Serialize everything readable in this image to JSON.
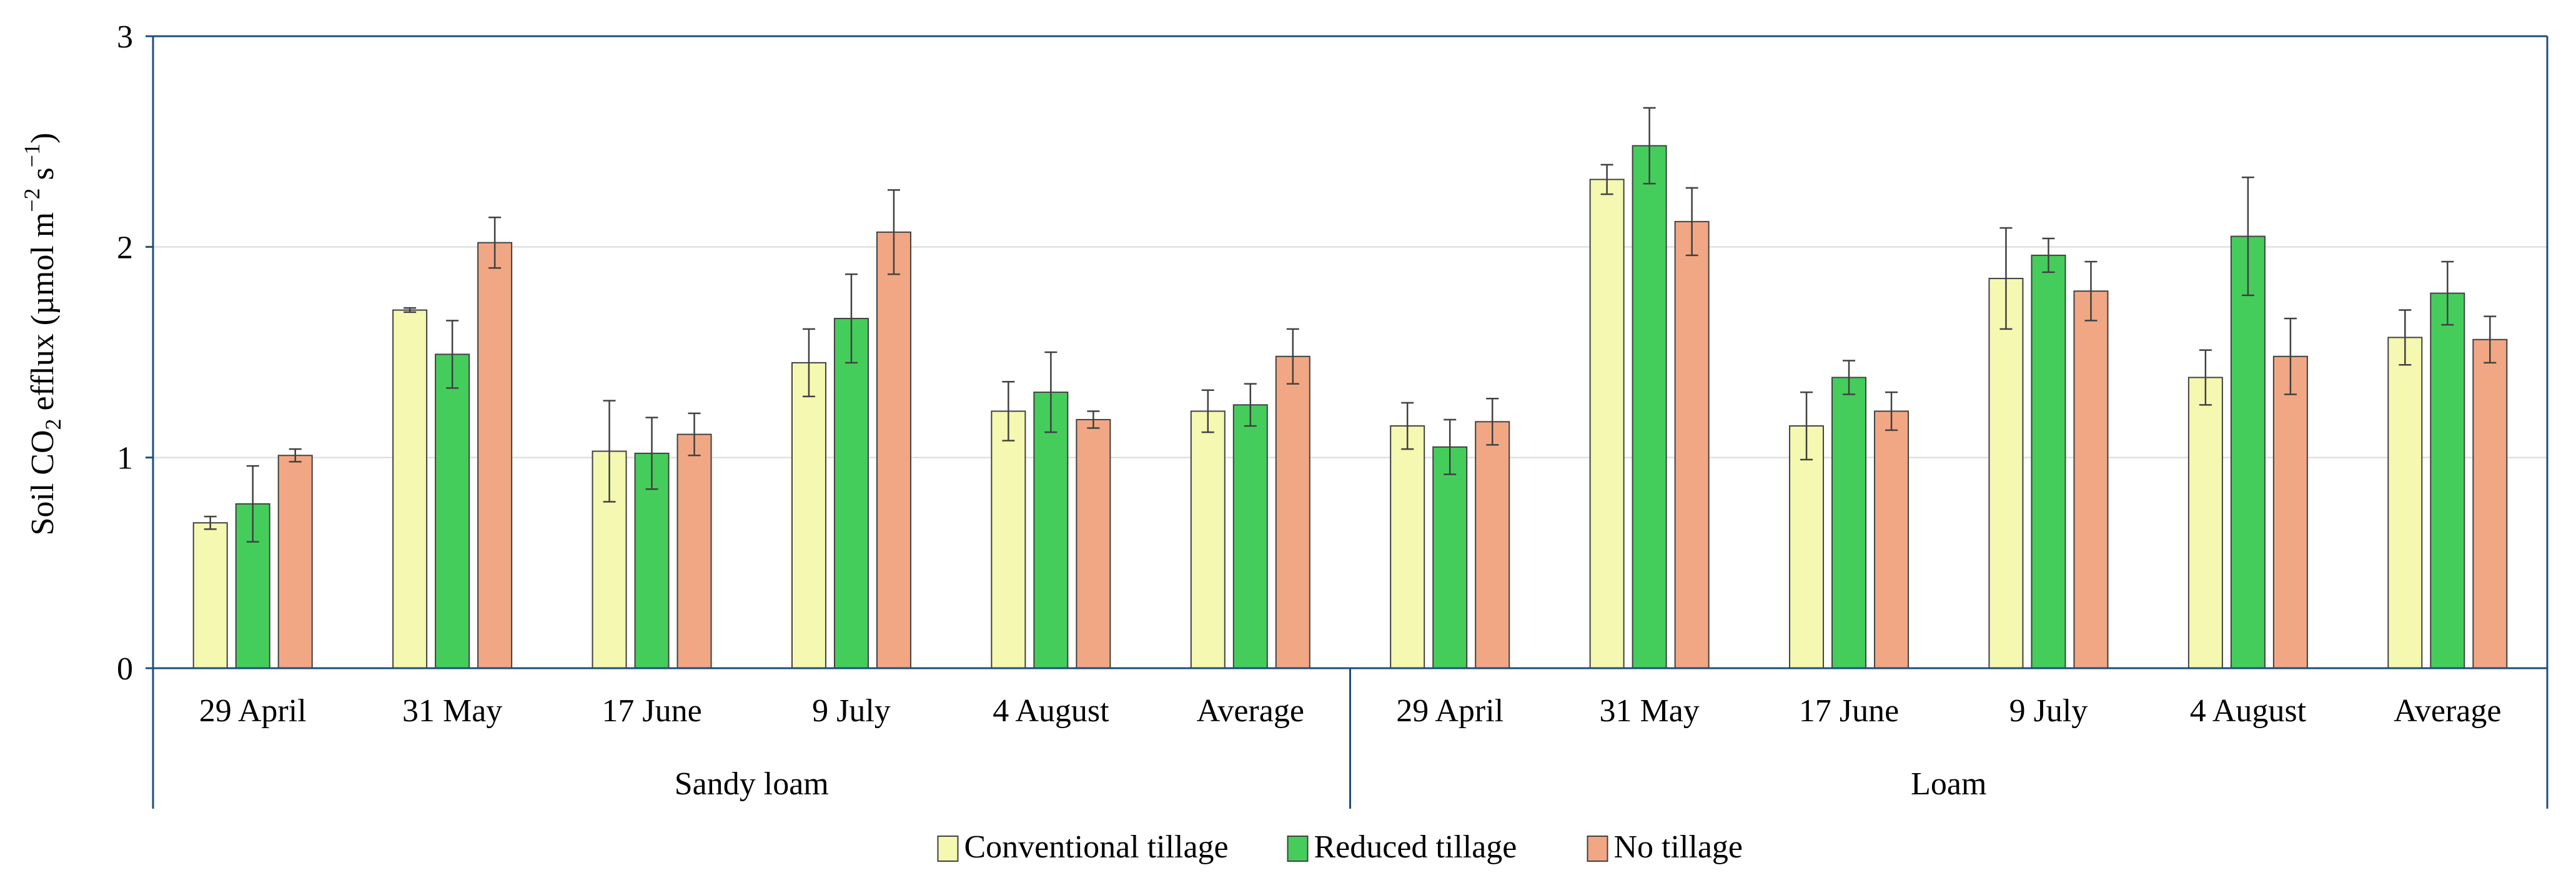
{
  "chart_data": {
    "type": "bar",
    "title": "",
    "ylabel": {
      "prefix": "Soil  CO",
      "sub": "2",
      "mid": " efflux (µmol m",
      "sup1": "−2",
      "gap": " s",
      "sup2": "−1",
      "suffix": ")"
    },
    "ylim": [
      0,
      3
    ],
    "yticks": [
      0,
      1,
      2,
      3
    ],
    "ytick_labels": [
      "0",
      "1",
      "2",
      "3"
    ],
    "grid": true,
    "legend_position": "bottom-center",
    "groups": [
      {
        "name": "Sandy loam",
        "categories": [
          "29 April",
          "31 May",
          "17 June",
          "9 July",
          "4 August",
          "Average"
        ]
      },
      {
        "name": "Loam",
        "categories": [
          "29 April",
          "31 May",
          "17 June",
          "9 July",
          "4 August",
          "Average"
        ]
      }
    ],
    "series": [
      {
        "name": "Conventional tillage",
        "color": "#f4f8b0",
        "values": [
          0.69,
          1.7,
          1.03,
          1.45,
          1.22,
          1.22,
          1.15,
          2.32,
          1.15,
          1.85,
          1.38,
          1.57
        ],
        "errors": [
          0.03,
          0.01,
          0.24,
          0.16,
          0.14,
          0.1,
          0.11,
          0.07,
          0.16,
          0.24,
          0.13,
          0.13
        ]
      },
      {
        "name": "Reduced tillage",
        "color": "#45cd5c",
        "values": [
          0.78,
          1.49,
          1.02,
          1.66,
          1.31,
          1.25,
          1.05,
          2.48,
          1.38,
          1.96,
          2.05,
          1.78
        ],
        "errors": [
          0.18,
          0.16,
          0.17,
          0.21,
          0.19,
          0.1,
          0.13,
          0.18,
          0.08,
          0.08,
          0.28,
          0.15
        ]
      },
      {
        "name": "No tillage",
        "color": "#f1a784",
        "values": [
          1.01,
          2.02,
          1.11,
          2.07,
          1.18,
          1.48,
          1.17,
          2.12,
          1.22,
          1.79,
          1.48,
          1.56
        ],
        "errors": [
          0.03,
          0.12,
          0.1,
          0.2,
          0.04,
          0.13,
          0.11,
          0.16,
          0.09,
          0.14,
          0.18,
          0.11
        ]
      }
    ]
  },
  "colors": {
    "axis": "#1f4e79",
    "grid": "#d9d9d9",
    "bar_outline": "#404040",
    "error_bar": "#404040"
  }
}
